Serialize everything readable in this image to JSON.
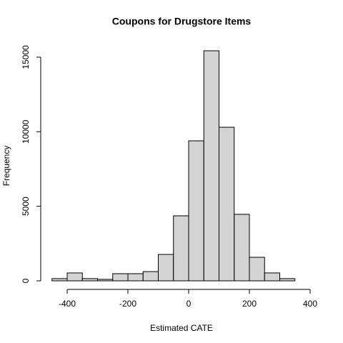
{
  "chart_data": {
    "type": "histogram",
    "title": "Coupons for Drugstore Items",
    "x_label": "Estimated CATE",
    "y_label": "Frequency",
    "bins": [
      -450,
      -400,
      -350,
      -300,
      -250,
      -200,
      -150,
      -100,
      -50,
      0,
      50,
      100,
      150,
      200,
      250,
      300,
      350
    ],
    "values": [
      150,
      530,
      150,
      100,
      480,
      480,
      620,
      1770,
      4360,
      9390,
      15430,
      10300,
      4460,
      1580,
      530,
      150
    ],
    "color": "#d3d3d3",
    "xlim": [
      -400,
      400
    ],
    "xticks": [
      -400,
      -200,
      0,
      200,
      400
    ],
    "ylim": [
      0,
      15000
    ],
    "yticks": [
      0,
      5000,
      10000,
      15000
    ]
  }
}
